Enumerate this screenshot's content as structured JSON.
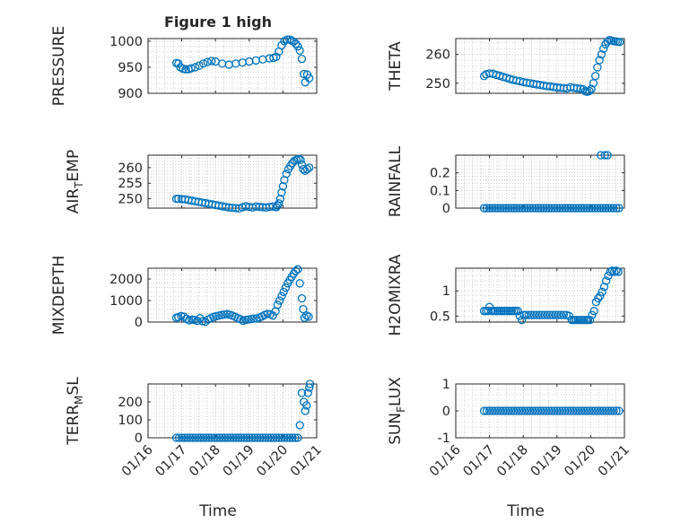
{
  "figure": {
    "title": "Figure 1 high",
    "marker_color": "#0072BD",
    "axis_color": "#262626",
    "grid_color": "#B0B0B0"
  },
  "chart_data": [
    {
      "type": "scatter",
      "title": "Figure 1 high",
      "ylabel": "PRESSURE",
      "ylabel_sub": null,
      "xlim": [
        0,
        5
      ],
      "ylim": [
        900,
        1005
      ],
      "yticks": [
        900,
        950,
        1000
      ],
      "yticklabels": [
        "900",
        "950",
        "1000"
      ],
      "x": [
        0.84,
        0.9,
        0.96,
        1.04,
        1.12,
        1.2,
        1.28,
        1.4,
        1.52,
        1.64,
        1.76,
        1.88,
        2.0,
        2.2,
        2.4,
        2.6,
        2.8,
        3.0,
        3.2,
        3.4,
        3.6,
        3.72,
        3.8,
        3.88,
        3.96,
        4.04,
        4.12,
        4.2,
        4.26,
        4.32,
        4.38,
        4.44,
        4.5,
        4.56,
        4.62,
        4.66,
        4.72,
        4.78
      ],
      "y": [
        958,
        957,
        950,
        947,
        946,
        946,
        948,
        950,
        953,
        957,
        960,
        962,
        961,
        957,
        955,
        957,
        959,
        961,
        963,
        965,
        967,
        968,
        970,
        980,
        992,
        1000,
        1003,
        1003,
        1001,
        999,
        995,
        990,
        982,
        966,
        937,
        921,
        936,
        929
      ]
    },
    {
      "type": "scatter",
      "ylabel": "THETA",
      "ylabel_sub": null,
      "xlim": [
        0,
        5
      ],
      "ylim": [
        246.5,
        265.5
      ],
      "yticks": [
        250,
        260
      ],
      "yticklabels": [
        "250",
        "260"
      ],
      "x": [
        0.84,
        0.9,
        1.0,
        1.1,
        1.2,
        1.3,
        1.4,
        1.5,
        1.6,
        1.7,
        1.8,
        1.9,
        2.0,
        2.1,
        2.2,
        2.3,
        2.4,
        2.5,
        2.6,
        2.7,
        2.8,
        2.9,
        3.0,
        3.1,
        3.2,
        3.3,
        3.4,
        3.5,
        3.6,
        3.7,
        3.78,
        3.84,
        3.9,
        3.96,
        4.02,
        4.08,
        4.14,
        4.2,
        4.26,
        4.32,
        4.38,
        4.44,
        4.5,
        4.56,
        4.62,
        4.68,
        4.74,
        4.8,
        4.86
      ],
      "y": [
        252.5,
        253.1,
        253.4,
        253.3,
        252.9,
        252.6,
        252.2,
        251.9,
        251.5,
        251.2,
        250.9,
        250.7,
        250.4,
        250.2,
        250.0,
        249.8,
        249.6,
        249.4,
        249.2,
        249.0,
        248.9,
        248.7,
        248.5,
        248.4,
        248.3,
        248.2,
        248.6,
        248.4,
        248.2,
        248.1,
        247.9,
        247.2,
        247.0,
        247.3,
        248.0,
        250.0,
        252.5,
        255.5,
        258.0,
        260.0,
        262.0,
        263.5,
        264.5,
        265.0,
        264.8,
        264.6,
        264.5,
        264.4,
        264.3
      ]
    },
    {
      "type": "scatter",
      "ylabel": "AIR",
      "ylabel_sub": "T",
      "ylabel_after": "EMP",
      "xlim": [
        0,
        5
      ],
      "ylim": [
        247,
        264
      ],
      "yticks": [
        250,
        255,
        260
      ],
      "yticklabels": [
        "250",
        "255",
        "260"
      ],
      "x": [
        0.84,
        0.9,
        1.0,
        1.1,
        1.2,
        1.3,
        1.4,
        1.5,
        1.6,
        1.7,
        1.8,
        1.9,
        2.0,
        2.1,
        2.2,
        2.3,
        2.4,
        2.5,
        2.6,
        2.7,
        2.8,
        2.9,
        3.0,
        3.1,
        3.2,
        3.3,
        3.4,
        3.5,
        3.6,
        3.7,
        3.8,
        3.84,
        3.88,
        3.92,
        3.96,
        4.0,
        4.04,
        4.1,
        4.16,
        4.22,
        4.28,
        4.34,
        4.4,
        4.46,
        4.52,
        4.56,
        4.6,
        4.66,
        4.72,
        4.78
      ],
      "y": [
        250.0,
        250.0,
        249.9,
        249.8,
        249.6,
        249.4,
        249.2,
        249.0,
        248.8,
        248.6,
        248.4,
        248.2,
        248.0,
        247.8,
        247.6,
        247.4,
        247.2,
        247.1,
        247.0,
        246.9,
        247.3,
        247.6,
        247.4,
        247.2,
        247.5,
        247.4,
        247.3,
        247.2,
        247.4,
        247.5,
        247.3,
        247.8,
        248.5,
        250.0,
        252.0,
        254.0,
        256.0,
        258.0,
        259.5,
        260.5,
        261.5,
        262.2,
        262.5,
        262.8,
        262.5,
        261.0,
        259.5,
        259.0,
        259.5,
        260.0
      ]
    },
    {
      "type": "scatter",
      "ylabel": "RAINFALL",
      "ylabel_sub": null,
      "xlim": [
        0,
        5
      ],
      "ylim": [
        0,
        0.3
      ],
      "yticks": [
        0,
        0.1,
        0.2
      ],
      "yticklabels": [
        "0",
        "0.1",
        "0.2"
      ],
      "x": [
        0.84,
        0.92,
        1.0,
        1.08,
        1.16,
        1.24,
        1.32,
        1.4,
        1.48,
        1.56,
        1.64,
        1.72,
        1.8,
        1.88,
        1.96,
        2.04,
        2.12,
        2.2,
        2.28,
        2.36,
        2.44,
        2.52,
        2.6,
        2.68,
        2.76,
        2.84,
        2.92,
        3.0,
        3.08,
        3.16,
        3.24,
        3.32,
        3.4,
        3.48,
        3.56,
        3.64,
        3.72,
        3.8,
        3.88,
        3.96,
        4.04,
        4.12,
        4.2,
        4.28,
        4.36,
        4.44,
        4.52,
        4.6,
        4.68,
        4.76,
        4.84,
        4.3,
        4.42,
        4.5
      ],
      "y": [
        0,
        0,
        0,
        0,
        0,
        0,
        0,
        0,
        0,
        0,
        0,
        0,
        0,
        0,
        0,
        0,
        0,
        0,
        0,
        0,
        0,
        0,
        0,
        0,
        0,
        0,
        0,
        0,
        0,
        0,
        0,
        0,
        0,
        0,
        0,
        0,
        0,
        0,
        0,
        0,
        0,
        0,
        0,
        0,
        0,
        0,
        0,
        0,
        0,
        0,
        0,
        0.3,
        0.3,
        0.3
      ]
    },
    {
      "type": "scatter",
      "ylabel": "MIXDEPTH",
      "ylabel_sub": null,
      "xlim": [
        0,
        5
      ],
      "ylim": [
        0,
        2500
      ],
      "yticks": [
        0,
        1000,
        2000
      ],
      "yticklabels": [
        "0",
        "1000",
        "2000"
      ],
      "x": [
        0.84,
        0.9,
        0.98,
        1.06,
        1.14,
        1.22,
        1.3,
        1.38,
        1.46,
        1.54,
        1.62,
        1.7,
        1.78,
        1.86,
        1.94,
        2.02,
        2.1,
        2.18,
        2.26,
        2.34,
        2.42,
        2.5,
        2.58,
        2.66,
        2.74,
        2.82,
        2.9,
        2.98,
        3.06,
        3.14,
        3.22,
        3.3,
        3.38,
        3.46,
        3.54,
        3.62,
        3.7,
        3.78,
        3.84,
        3.9,
        3.96,
        4.02,
        4.08,
        4.14,
        4.2,
        4.26,
        4.32,
        4.38,
        4.44,
        4.5,
        4.56,
        4.6,
        4.64,
        4.7,
        4.76
      ],
      "y": [
        200,
        230,
        280,
        250,
        150,
        80,
        120,
        100,
        60,
        180,
        40,
        10,
        120,
        180,
        240,
        270,
        300,
        330,
        350,
        370,
        340,
        300,
        250,
        180,
        130,
        60,
        100,
        120,
        140,
        160,
        160,
        210,
        260,
        330,
        380,
        360,
        300,
        500,
        800,
        1000,
        1200,
        1400,
        1600,
        1800,
        1950,
        2100,
        2250,
        2380,
        2450,
        1800,
        1100,
        600,
        200,
        300,
        250
      ]
    },
    {
      "type": "scatter",
      "ylabel": "H2OMIXRA",
      "ylabel_sub": null,
      "xlim": [
        0,
        5
      ],
      "ylim": [
        0.38,
        1.45
      ],
      "yticks": [
        0.5,
        1
      ],
      "yticklabels": [
        "0.5",
        "1"
      ],
      "x": [
        0.84,
        0.9,
        0.96,
        1.0,
        1.06,
        1.12,
        1.18,
        1.24,
        1.3,
        1.36,
        1.42,
        1.48,
        1.54,
        1.6,
        1.66,
        1.72,
        1.78,
        1.84,
        1.9,
        1.96,
        2.02,
        2.08,
        2.16,
        2.24,
        2.32,
        2.4,
        2.48,
        2.56,
        2.64,
        2.72,
        2.8,
        2.88,
        2.96,
        3.04,
        3.12,
        3.2,
        3.28,
        3.36,
        3.44,
        3.5,
        3.56,
        3.62,
        3.68,
        3.74,
        3.8,
        3.86,
        3.92,
        3.98,
        4.04,
        4.1,
        4.16,
        4.22,
        4.28,
        4.34,
        4.4,
        4.46,
        4.52,
        4.58,
        4.64,
        4.7,
        4.76,
        4.82
      ],
      "y": [
        0.6,
        0.6,
        0.6,
        0.68,
        0.6,
        0.6,
        0.6,
        0.6,
        0.6,
        0.6,
        0.6,
        0.6,
        0.6,
        0.6,
        0.6,
        0.6,
        0.6,
        0.6,
        0.5,
        0.42,
        0.52,
        0.52,
        0.52,
        0.52,
        0.52,
        0.52,
        0.52,
        0.52,
        0.52,
        0.52,
        0.52,
        0.52,
        0.52,
        0.52,
        0.52,
        0.52,
        0.52,
        0.5,
        0.42,
        0.42,
        0.42,
        0.42,
        0.42,
        0.42,
        0.42,
        0.42,
        0.42,
        0.42,
        0.52,
        0.6,
        0.78,
        0.85,
        0.9,
        0.98,
        1.08,
        1.2,
        1.3,
        1.38,
        1.4,
        1.38,
        1.4,
        1.38
      ]
    },
    {
      "type": "scatter",
      "ylabel": "TERR",
      "ylabel_sub": "M",
      "ylabel_after": "SL",
      "xlim": [
        0,
        5
      ],
      "ylim": [
        0,
        300
      ],
      "yticks": [
        0,
        100,
        200
      ],
      "yticklabels": [
        "0",
        "100",
        "200"
      ],
      "x": [
        0.84,
        0.92,
        1.0,
        1.08,
        1.16,
        1.24,
        1.32,
        1.4,
        1.48,
        1.56,
        1.64,
        1.72,
        1.8,
        1.88,
        1.96,
        2.04,
        2.12,
        2.2,
        2.28,
        2.36,
        2.44,
        2.52,
        2.6,
        2.68,
        2.76,
        2.84,
        2.92,
        3.0,
        3.08,
        3.16,
        3.24,
        3.32,
        3.4,
        3.48,
        3.56,
        3.64,
        3.72,
        3.8,
        3.88,
        3.96,
        4.04,
        4.12,
        4.2,
        4.28,
        4.36,
        4.44,
        4.5,
        4.56,
        4.62,
        4.66,
        4.7,
        4.74,
        4.78,
        4.8
      ],
      "y": [
        0,
        0,
        0,
        0,
        0,
        0,
        0,
        0,
        0,
        0,
        0,
        0,
        0,
        0,
        0,
        0,
        0,
        0,
        0,
        0,
        0,
        0,
        0,
        0,
        0,
        0,
        0,
        0,
        0,
        0,
        0,
        0,
        0,
        0,
        0,
        0,
        0,
        0,
        0,
        0,
        0,
        0,
        0,
        0,
        0,
        0,
        70,
        250,
        200,
        150,
        180,
        250,
        280,
        300
      ]
    },
    {
      "type": "scatter",
      "ylabel": "SUN",
      "ylabel_sub": "F",
      "ylabel_after": "LUX",
      "xlim": [
        0,
        5
      ],
      "ylim": [
        -1,
        1
      ],
      "yticks": [
        -1,
        0,
        1
      ],
      "yticklabels": [
        "-1",
        "0",
        "1"
      ],
      "x": [
        0.84,
        0.92,
        1.0,
        1.08,
        1.16,
        1.24,
        1.32,
        1.4,
        1.48,
        1.56,
        1.64,
        1.72,
        1.8,
        1.88,
        1.96,
        2.04,
        2.12,
        2.2,
        2.28,
        2.36,
        2.44,
        2.52,
        2.6,
        2.68,
        2.76,
        2.84,
        2.92,
        3.0,
        3.08,
        3.16,
        3.24,
        3.32,
        3.4,
        3.48,
        3.56,
        3.64,
        3.72,
        3.8,
        3.88,
        3.96,
        4.04,
        4.12,
        4.2,
        4.28,
        4.36,
        4.44,
        4.52,
        4.6,
        4.68,
        4.76,
        4.84
      ],
      "y": [
        0,
        0,
        0,
        0,
        0,
        0,
        0,
        0,
        0,
        0,
        0,
        0,
        0,
        0,
        0,
        0,
        0,
        0,
        0,
        0,
        0,
        0,
        0,
        0,
        0,
        0,
        0,
        0,
        0,
        0,
        0,
        0,
        0,
        0,
        0,
        0,
        0,
        0,
        0,
        0,
        0,
        0,
        0,
        0,
        0,
        0,
        0,
        0,
        0,
        0,
        0
      ]
    }
  ],
  "x_axis": {
    "ticks": [
      0,
      1,
      2,
      3,
      4,
      5
    ],
    "ticklabels": [
      "01/16",
      "01/17",
      "01/18",
      "01/19",
      "01/20",
      "01/21"
    ],
    "xlabel": "Time"
  }
}
